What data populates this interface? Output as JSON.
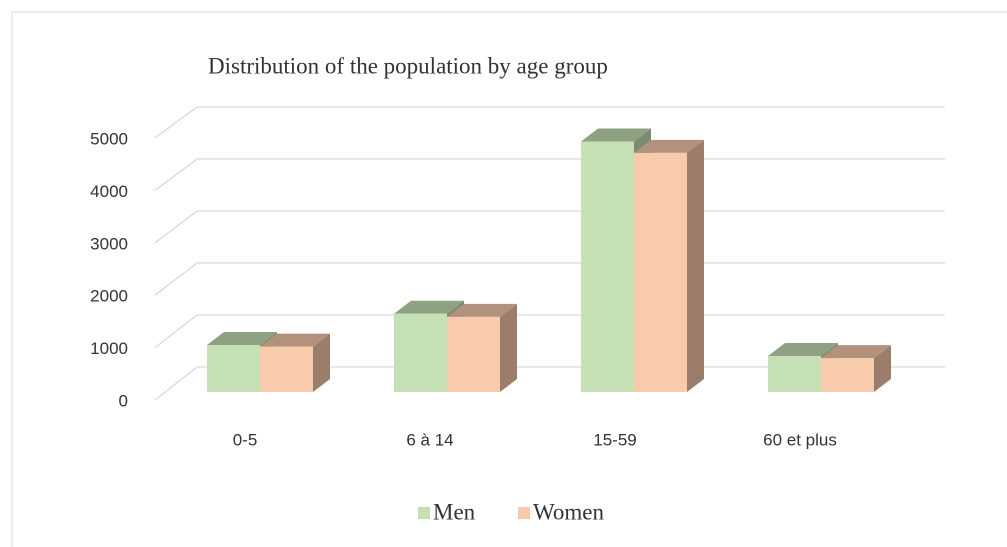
{
  "chart_data": {
    "type": "bar3d",
    "title": "Distribution of the population by age group",
    "categories": [
      "0-5",
      "6 à 14",
      "15-59",
      "60 et plus"
    ],
    "series": [
      {
        "name": "Men",
        "color": "#c5e0b4",
        "values": [
          900,
          1500,
          4800,
          690
        ]
      },
      {
        "name": "Women",
        "color": "#f8cbad",
        "values": [
          870,
          1440,
          4580,
          650
        ]
      }
    ],
    "ylim": [
      0,
      5000
    ],
    "yticks": [
      0,
      1000,
      2000,
      3000,
      4000,
      5000
    ],
    "grid": true,
    "legend": "bottom"
  }
}
